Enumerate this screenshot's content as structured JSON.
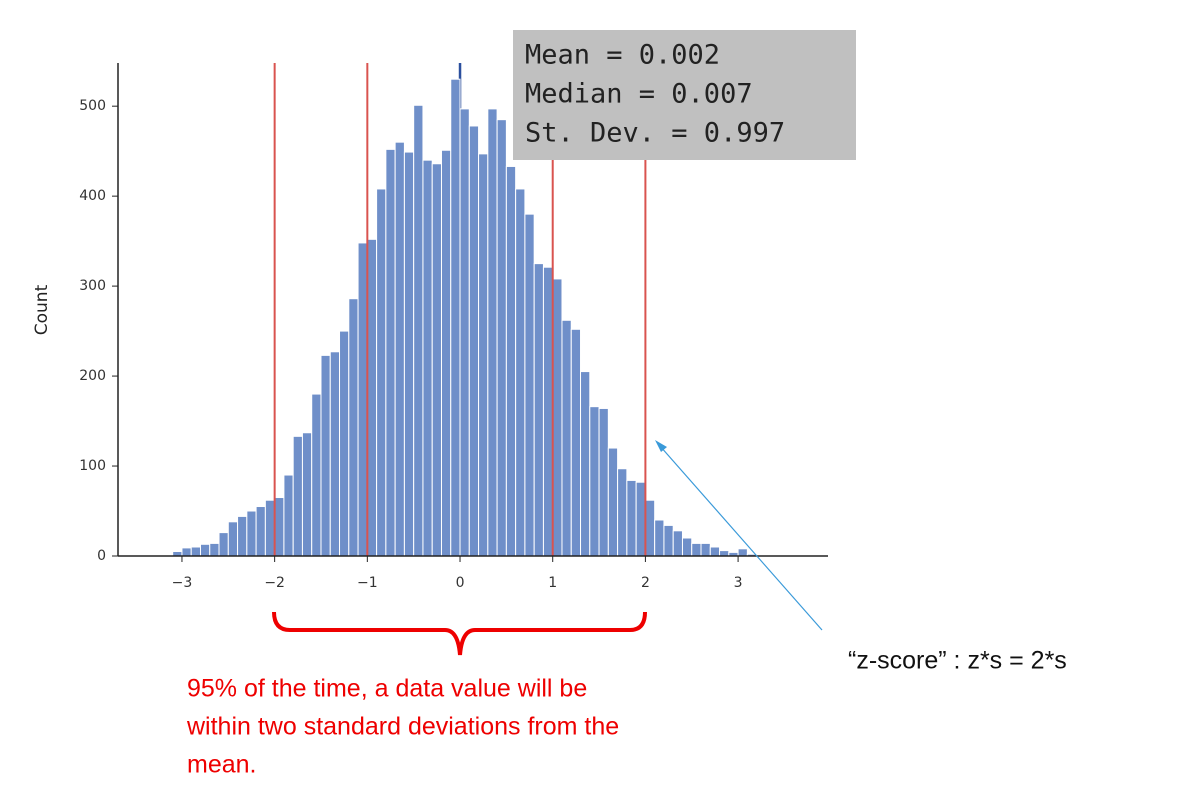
{
  "chart_data": {
    "type": "histogram",
    "ylabel": "Count",
    "bins": [
      -3.2,
      -3.1,
      -3.0,
      -2.9,
      -2.8,
      -2.7,
      -2.6,
      -2.5,
      -2.4,
      -2.3,
      -2.2,
      -2.1,
      -2.0,
      -1.9,
      -1.8,
      -1.7,
      -1.6,
      -1.5,
      -1.4,
      -1.3,
      -1.2,
      -1.1,
      -1.0,
      -0.9,
      -0.8,
      -0.7,
      -0.6,
      -0.5,
      -0.4,
      -0.3,
      -0.2,
      -0.1,
      0.0,
      0.1,
      0.2,
      0.3,
      0.4,
      0.5,
      0.6,
      0.7,
      0.8,
      0.9,
      1.0,
      1.1,
      1.2,
      1.3,
      1.4,
      1.5,
      1.6,
      1.7,
      1.8,
      1.9,
      2.0,
      2.1,
      2.2,
      2.3,
      2.4,
      2.5,
      2.6,
      2.7,
      2.8,
      2.9,
      3.0,
      3.1,
      3.2,
      3.3
    ],
    "counts": [
      1,
      5,
      9,
      10,
      13,
      14,
      26,
      38,
      44,
      50,
      55,
      62,
      65,
      90,
      133,
      137,
      180,
      223,
      227,
      250,
      286,
      348,
      352,
      408,
      452,
      460,
      449,
      501,
      440,
      436,
      451,
      530,
      497,
      478,
      447,
      497,
      485,
      433,
      408,
      380,
      325,
      321,
      308,
      262,
      252,
      205,
      166,
      164,
      120,
      97,
      84,
      82,
      62,
      40,
      34,
      28,
      20,
      14,
      14,
      10,
      6,
      4,
      8,
      2,
      1
    ],
    "color": "#6f8fc9",
    "xlim": [
      -3.69,
      3.97
    ],
    "ylim": [
      0,
      548
    ],
    "xticks": [
      {
        "value": -3,
        "label": "−3"
      },
      {
        "value": -2,
        "label": "−2"
      },
      {
        "value": -1,
        "label": "−1"
      },
      0,
      1,
      2,
      3
    ],
    "yticks": [
      0,
      100,
      200,
      300,
      400,
      500
    ],
    "mean_line": {
      "value": 0,
      "color": "#2b4f9e"
    },
    "reference_lines": {
      "values": [
        -2,
        -1,
        1,
        2
      ],
      "color": "#d9534f"
    },
    "stats_box": [
      "Mean = 0.002",
      "Median = 0.007",
      "St. Dev. = 0.997"
    ],
    "brace_note": [
      "95% of the time, a data value will be",
      "within two standard deviations from the",
      "mean."
    ],
    "arrow_note": "“z-score” : z*s = 2*s"
  }
}
